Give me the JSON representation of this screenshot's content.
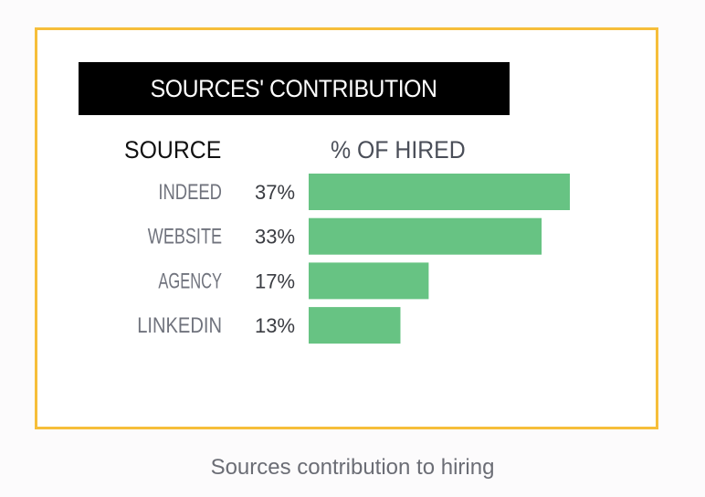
{
  "chart_data": {
    "type": "bar",
    "orientation": "horizontal",
    "title": "SOURCES' CONTRIBUTION",
    "category_header": "SOURCE",
    "value_header": "% OF HIRED",
    "categories": [
      "INDEED",
      "WEBSITE",
      "AGENCY",
      "LINKEDIN"
    ],
    "values": [
      37,
      33,
      17,
      13
    ],
    "value_labels": [
      "37%",
      "33%",
      "17%",
      "13%"
    ],
    "xlim": [
      0,
      37
    ],
    "grid": false,
    "legend": "none",
    "colors": {
      "bar": "#67c383",
      "title_background": "#000000",
      "title_text": "#ffffff",
      "frame_border": "#f6be3a"
    }
  },
  "caption": "Sources contribution to hiring"
}
